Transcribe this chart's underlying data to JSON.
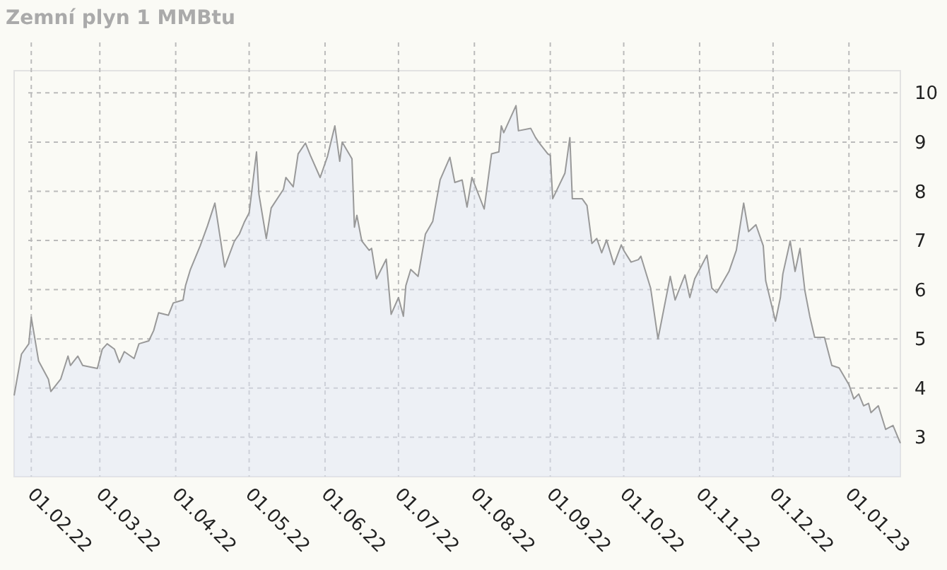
{
  "chart_data": {
    "type": "area",
    "title": "Zemní plyn 1 MMBtu",
    "grid": true,
    "xlim": [
      "2022-01-25",
      "2023-01-22"
    ],
    "ylim": [
      2.2,
      10.45
    ],
    "yticks": [
      3,
      4,
      5,
      6,
      7,
      8,
      9,
      10
    ],
    "xticks": [
      {
        "value": "2022-02-01",
        "label": "01.02.22"
      },
      {
        "value": "2022-03-01",
        "label": "01.03.22"
      },
      {
        "value": "2022-04-01",
        "label": "01.04.22"
      },
      {
        "value": "2022-05-01",
        "label": "01.05.22"
      },
      {
        "value": "2022-06-01",
        "label": "01.06.22"
      },
      {
        "value": "2022-07-01",
        "label": "01.07.22"
      },
      {
        "value": "2022-08-01",
        "label": "01.08.22"
      },
      {
        "value": "2022-09-01",
        "label": "01.09.22"
      },
      {
        "value": "2022-10-01",
        "label": "01.10.22"
      },
      {
        "value": "2022-11-01",
        "label": "01.11.22"
      },
      {
        "value": "2022-12-01",
        "label": "01.12.22"
      },
      {
        "value": "2023-01-01",
        "label": "01.01.23"
      }
    ],
    "series": [
      {
        "color": "#999999",
        "x": [
          "2022-01-25",
          "2022-01-28",
          "2022-01-31",
          "2022-02-01",
          "2022-02-04",
          "2022-02-08",
          "2022-02-09",
          "2022-02-13",
          "2022-02-16",
          "2022-02-17",
          "2022-02-20",
          "2022-02-22",
          "2022-02-28",
          "2022-03-02",
          "2022-03-04",
          "2022-03-07",
          "2022-03-09",
          "2022-03-11",
          "2022-03-15",
          "2022-03-17",
          "2022-03-21",
          "2022-03-23",
          "2022-03-25",
          "2022-03-29",
          "2022-03-31",
          "2022-04-04",
          "2022-04-05",
          "2022-04-07",
          "2022-04-11",
          "2022-04-14",
          "2022-04-17",
          "2022-04-21",
          "2022-04-25",
          "2022-04-27",
          "2022-04-29",
          "2022-05-01",
          "2022-05-04",
          "2022-05-05",
          "2022-05-08",
          "2022-05-10",
          "2022-05-15",
          "2022-05-16",
          "2022-05-19",
          "2022-05-21",
          "2022-05-24",
          "2022-05-26",
          "2022-05-30",
          "2022-06-02",
          "2022-06-05",
          "2022-06-07",
          "2022-06-08",
          "2022-06-12",
          "2022-06-13",
          "2022-06-14",
          "2022-06-16",
          "2022-06-19",
          "2022-06-20",
          "2022-06-22",
          "2022-06-26",
          "2022-06-28",
          "2022-07-01",
          "2022-07-03",
          "2022-07-04",
          "2022-07-06",
          "2022-07-09",
          "2022-07-12",
          "2022-07-15",
          "2022-07-18",
          "2022-07-22",
          "2022-07-24",
          "2022-07-27",
          "2022-07-29",
          "2022-07-31",
          "2022-08-05",
          "2022-08-08",
          "2022-08-11",
          "2022-08-12",
          "2022-08-13",
          "2022-08-18",
          "2022-08-19",
          "2022-08-24",
          "2022-08-26",
          "2022-08-28",
          "2022-08-31",
          "2022-09-01",
          "2022-09-02",
          "2022-09-07",
          "2022-09-09",
          "2022-09-10",
          "2022-09-14",
          "2022-09-16",
          "2022-09-18",
          "2022-09-20",
          "2022-09-22",
          "2022-09-24",
          "2022-09-27",
          "2022-09-30",
          "2022-10-01",
          "2022-10-04",
          "2022-10-07",
          "2022-10-08",
          "2022-10-12",
          "2022-10-15",
          "2022-10-20",
          "2022-10-22",
          "2022-10-26",
          "2022-10-28",
          "2022-10-30",
          "2022-11-01",
          "2022-11-04",
          "2022-11-06",
          "2022-11-08",
          "2022-11-13",
          "2022-11-16",
          "2022-11-19",
          "2022-11-21",
          "2022-11-24",
          "2022-11-27",
          "2022-11-28",
          "2022-12-02",
          "2022-12-04",
          "2022-12-05",
          "2022-12-08",
          "2022-12-10",
          "2022-12-12",
          "2022-12-14",
          "2022-12-16",
          "2022-12-18",
          "2022-12-22",
          "2022-12-25",
          "2022-12-28",
          "2023-01-01",
          "2023-01-03",
          "2023-01-05",
          "2023-01-07",
          "2023-01-09",
          "2023-01-10",
          "2023-01-13",
          "2023-01-16",
          "2023-01-19",
          "2023-01-22"
        ],
        "values": [
          3.85,
          4.69,
          4.9,
          5.44,
          4.55,
          4.18,
          3.93,
          4.18,
          4.65,
          4.46,
          4.65,
          4.46,
          4.4,
          4.79,
          4.9,
          4.79,
          4.52,
          4.74,
          4.6,
          4.9,
          4.96,
          5.17,
          5.53,
          5.48,
          5.73,
          5.79,
          6.08,
          6.41,
          6.89,
          7.3,
          7.76,
          6.46,
          6.99,
          7.13,
          7.37,
          7.56,
          8.8,
          7.94,
          7.04,
          7.66,
          8.04,
          8.28,
          8.09,
          8.76,
          8.98,
          8.73,
          8.28,
          8.71,
          9.33,
          8.61,
          9.0,
          8.66,
          7.27,
          7.51,
          6.99,
          6.8,
          6.84,
          6.22,
          6.62,
          5.5,
          5.84,
          5.46,
          6.08,
          6.41,
          6.27,
          7.13,
          7.39,
          8.23,
          8.69,
          8.18,
          8.23,
          7.68,
          8.28,
          7.64,
          8.76,
          8.8,
          9.33,
          9.19,
          9.74,
          9.23,
          9.28,
          9.09,
          8.95,
          8.76,
          8.73,
          7.85,
          8.37,
          9.09,
          7.85,
          7.85,
          7.71,
          6.94,
          7.04,
          6.75,
          7.01,
          6.51,
          6.91,
          6.8,
          6.56,
          6.61,
          6.68,
          6.03,
          5.0,
          6.27,
          5.79,
          6.3,
          5.84,
          6.22,
          6.41,
          6.7,
          6.03,
          5.94,
          6.37,
          6.8,
          7.76,
          7.18,
          7.32,
          6.89,
          6.18,
          5.36,
          5.84,
          6.32,
          6.99,
          6.37,
          6.84,
          5.98,
          5.46,
          5.03,
          5.03,
          4.46,
          4.41,
          4.07,
          3.78,
          3.88,
          3.64,
          3.69,
          3.5,
          3.64,
          3.16,
          3.24,
          2.88
        ]
      }
    ]
  }
}
